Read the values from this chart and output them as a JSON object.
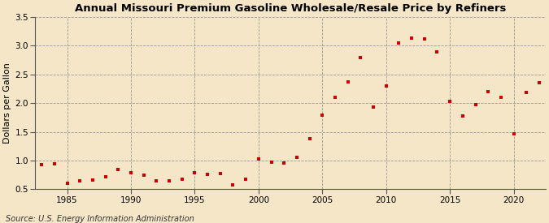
{
  "title": "Annual Missouri Premium Gasoline Wholesale/Resale Price by Refiners",
  "ylabel": "Dollars per Gallon",
  "source": "Source: U.S. Energy Information Administration",
  "background_color": "#f5e6c8",
  "plot_bg_color": "#fdf5e6",
  "marker_color": "#cc0000",
  "xlim": [
    1982.5,
    2022.5
  ],
  "ylim": [
    0.5,
    3.5
  ],
  "xticks": [
    1985,
    1990,
    1995,
    2000,
    2005,
    2010,
    2015,
    2020
  ],
  "yticks": [
    0.5,
    1.0,
    1.5,
    2.0,
    2.5,
    3.0,
    3.5
  ],
  "years": [
    1983,
    1984,
    1985,
    1986,
    1987,
    1988,
    1989,
    1990,
    1991,
    1992,
    1993,
    1994,
    1995,
    1996,
    1997,
    1998,
    1999,
    2000,
    2001,
    2002,
    2003,
    2004,
    2005,
    2006,
    2007,
    2008,
    2009,
    2010,
    2011,
    2012,
    2013,
    2014,
    2015,
    2016,
    2017,
    2018,
    2019,
    2020,
    2021,
    2022
  ],
  "values": [
    0.93,
    0.94,
    0.6,
    0.65,
    0.66,
    0.72,
    0.85,
    0.78,
    0.75,
    0.65,
    0.65,
    0.67,
    0.78,
    0.76,
    0.77,
    0.57,
    0.68,
    1.02,
    0.97,
    0.95,
    1.06,
    1.38,
    1.79,
    2.1,
    2.37,
    2.79,
    1.93,
    2.3,
    3.05,
    3.14,
    3.12,
    2.9,
    2.03,
    1.77,
    1.97,
    2.2,
    2.1,
    1.47,
    2.18,
    2.36
  ]
}
